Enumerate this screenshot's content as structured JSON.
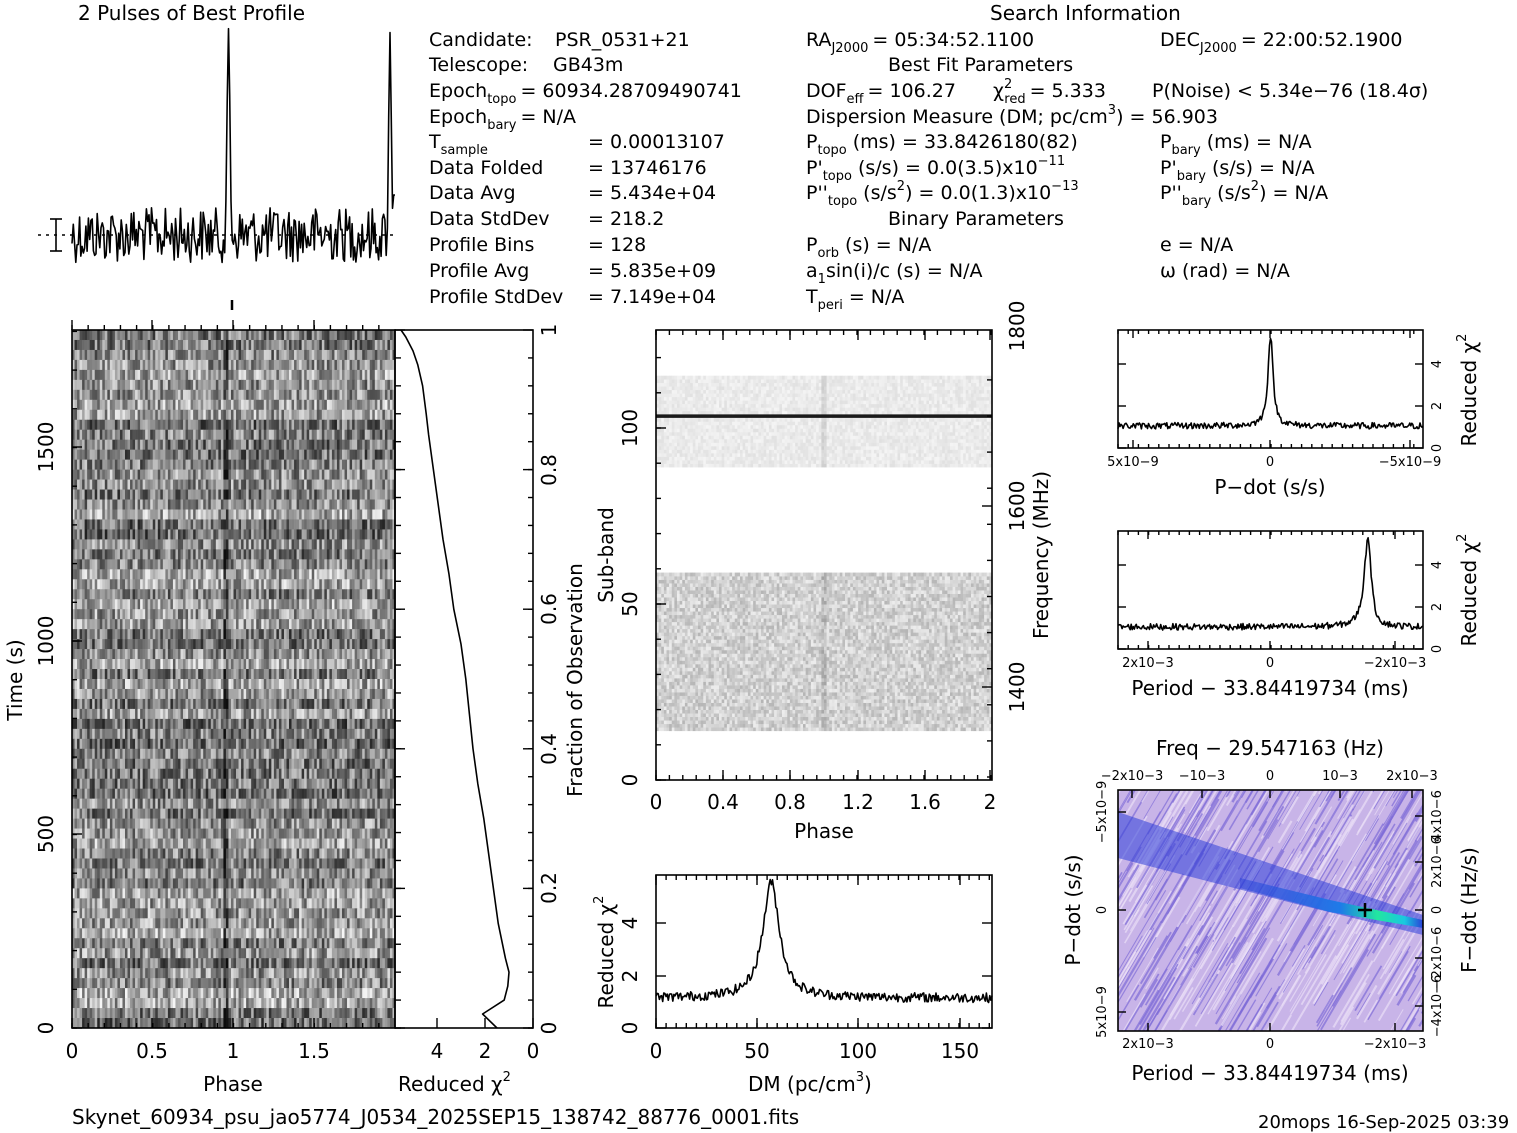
{
  "header": {
    "left_title": "2 Pulses of Best Profile",
    "right_title": "Search Information"
  },
  "info": {
    "candidate": {
      "label": "Candidate:",
      "value": "PSR_0531+21"
    },
    "telescope": {
      "label": "Telescope:",
      "value": "GB43m"
    },
    "epoch_topo": {
      "label": "Epoch",
      "sub": "topo",
      "value": "= 60934.28709490741"
    },
    "epoch_bary": {
      "label": "Epoch",
      "sub": "bary",
      "value": "= N/A"
    },
    "t_sample": {
      "label": "T",
      "sub": "sample",
      "value": "=   0.00013107"
    },
    "data_folded": {
      "label": "Data Folded",
      "value": "=   13746176"
    },
    "data_avg": {
      "label": "Data Avg",
      "value": "=   5.434e+04"
    },
    "data_stddev": {
      "label": "Data StdDev",
      "value": "=   218.2"
    },
    "profile_bins": {
      "label": "Profile Bins",
      "value": "=   128"
    },
    "profile_avg": {
      "label": "Profile Avg",
      "value": "=   5.835e+09"
    },
    "profile_stddev": {
      "label": "Profile StdDev",
      "value": "=   7.149e+04"
    },
    "ra": {
      "label": "RA",
      "sub": "J2000",
      "value": "= 05:34:52.1100"
    },
    "dec": {
      "label": "DEC",
      "sub": "J2000",
      "value": "= 22:00:52.1900"
    },
    "best_fit_heading": "Best Fit Parameters",
    "dof": {
      "label": "DOF",
      "sub": "eff",
      "value": "= 106.27"
    },
    "chi_sym": "χ",
    "chi_sup": "2",
    "chi_sub": "red",
    "chi_value": "= 5.333",
    "pnoise": "P(Noise) < 5.34e−76   (18.4σ)",
    "dm_a": "Dispersion Measure (DM; pc/cm",
    "dm_sup": "3",
    "dm_b": ") = 56.903",
    "ptopo": {
      "label": "P",
      "sub": "topo",
      "value": "(ms) =   33.8426180(82)"
    },
    "pbary": {
      "label": "P",
      "sub": "bary",
      "value": "(ms) = N/A"
    },
    "pdtopo": {
      "label": "P'",
      "sub": "topo",
      "value": "(s/s) = 0.0(3.5)x10",
      "sup": "−11"
    },
    "pdbary": {
      "label": "P'",
      "sub": "bary",
      "value": "(s/s) = N/A"
    },
    "pddtopo": {
      "label": "P''",
      "sub": "topo",
      "value": "(s/s",
      "sup": "2",
      "tail": ") = 0.0(1.3)x10",
      "sup2": "−13"
    },
    "pddbary": {
      "label": "P''",
      "sub": "bary",
      "value": "(s/s",
      "sup": "2",
      "tail": ") = N/A"
    },
    "binary_heading": "Binary Parameters",
    "porb": {
      "label": "P",
      "sub": "orb",
      "value": "(s) = N/A"
    },
    "ecc": "e = N/A",
    "a1": {
      "label": "a",
      "sub": "1",
      "value": "sin(i)/c (s) = N/A"
    },
    "omega": "ω (rad) = N/A",
    "tperi": {
      "label": "T",
      "sub": "peri",
      "value": "= N/A"
    }
  },
  "footer": {
    "filename": "Skynet_60934_psu_jao5774_J0534_2025SEP15_138742_88776_0001.fits",
    "stamp": "20mops  16-Sep-2025 03:39"
  },
  "chart_data": [
    {
      "id": "profile",
      "type": "line",
      "title": "2 Pulses of Best Profile",
      "x": "phase 0–2 (two pulse periods)",
      "peak_phase": [
        0.97,
        1.97
      ],
      "baseline": 5835000000.0,
      "errorbar": "±1σ"
    },
    {
      "id": "time-phase",
      "type": "heatmap",
      "xlabel": "Phase",
      "ylabel": "Time (s)",
      "xlim": [
        0,
        2
      ],
      "ylim": [
        0,
        1802
      ],
      "x_ticks": [
        "0",
        "0.5",
        "1",
        "1.5"
      ],
      "y_ticks": [
        "0",
        "500",
        "1000",
        "1500"
      ]
    },
    {
      "id": "chi-vs-time",
      "type": "line",
      "xlabel": "Reduced χ2",
      "ylabel": "Fraction of Observation",
      "x_ticks": [
        "4",
        "2",
        "0"
      ],
      "y_ticks": [
        "0",
        "0.2",
        "0.4",
        "0.6",
        "0.8",
        "1"
      ],
      "fraction": [
        0,
        0.02,
        0.04,
        0.06,
        0.08,
        0.1,
        0.15,
        0.2,
        0.25,
        0.3,
        0.35,
        0.4,
        0.45,
        0.5,
        0.55,
        0.6,
        0.65,
        0.7,
        0.75,
        0.8,
        0.85,
        0.88,
        0.92,
        0.95,
        0.97,
        0.99,
        1.0
      ],
      "chi": [
        1.5,
        2.1,
        1.2,
        1.05,
        1.0,
        1.15,
        1.45,
        1.65,
        1.85,
        2.05,
        2.3,
        2.5,
        2.65,
        2.8,
        3.0,
        3.3,
        3.5,
        3.75,
        3.95,
        4.15,
        4.35,
        4.45,
        4.6,
        4.8,
        5.0,
        5.3,
        5.5
      ]
    },
    {
      "id": "subband-phase",
      "type": "heatmap",
      "xlabel": "Phase",
      "ylabel": "Sub-band",
      "y2label": "Frequency (MHz)",
      "xlim": [
        0,
        2
      ],
      "ylim": [
        0,
        128
      ],
      "x_ticks": [
        "0",
        "0.4",
        "0.8",
        "1.2",
        "1.6",
        "2"
      ],
      "y_ticks": [
        "0",
        "50",
        "100"
      ],
      "y2_ticks": [
        "1400",
        "1600",
        "1800"
      ],
      "occupied_subbands": [
        [
          14,
          59
        ],
        [
          89,
          115
        ]
      ],
      "bright_subband": 103
    },
    {
      "id": "dm-chi",
      "type": "line",
      "xlabel": "DM (pc/cm3)",
      "ylabel": "Reduced χ2",
      "xlim": [
        0,
        166
      ],
      "ylim": [
        0,
        5.6
      ],
      "x_ticks": [
        "0",
        "50",
        "100",
        "150"
      ],
      "y_ticks": [
        "0",
        "2",
        "4"
      ],
      "peak_dm": 56.903,
      "peak_chi": 5.333,
      "baseline_chi": 1.1
    },
    {
      "id": "pdot-chi",
      "type": "line",
      "xlabel": "P−dot (s/s)",
      "ylabel": "Reduced χ2",
      "xlim": [
        5e-09,
        -5e-09
      ],
      "ylim": [
        0,
        5.6
      ],
      "x_ticks": [
        "5x10−9",
        "0",
        "−5x10−9"
      ],
      "y_ticks": [
        "0",
        "2",
        "4"
      ],
      "peak_x": 0,
      "peak_chi": 5.333
    },
    {
      "id": "period-chi",
      "type": "line",
      "xlabel": "Period − 33.84419734 (ms)",
      "ylabel": "Reduced χ2",
      "xlim": [
        0.0025,
        -0.0025
      ],
      "ylim": [
        0,
        5.6
      ],
      "x_ticks": [
        "2x10−3",
        "0",
        "−2x10−3"
      ],
      "y_ticks": [
        "0",
        "2",
        "4"
      ],
      "peak_x": -0.0016,
      "peak_chi": 5.333
    },
    {
      "id": "p-pdot",
      "type": "heatmap",
      "title": "Freq − 29.547163 (Hz)",
      "xlabel": "Period − 33.84419734 (ms)",
      "ylabel": "P−dot (s/s)",
      "y2label": "F−dot (Hz/s)",
      "x_ticks": [
        "2x10−3",
        "0",
        "−2x10−3"
      ],
      "top_ticks": [
        "−2x10−3",
        "−10−3",
        "0",
        "10−3",
        "2x10−3"
      ],
      "y_ticks": [
        "−5x10−9",
        "0",
        "5x10−9"
      ],
      "y2_ticks": [
        "4x10−6",
        "2x10−6",
        "0",
        "−2x10−6",
        "−4x10−6"
      ],
      "best_x": -0.0016,
      "best_y": 0
    }
  ]
}
